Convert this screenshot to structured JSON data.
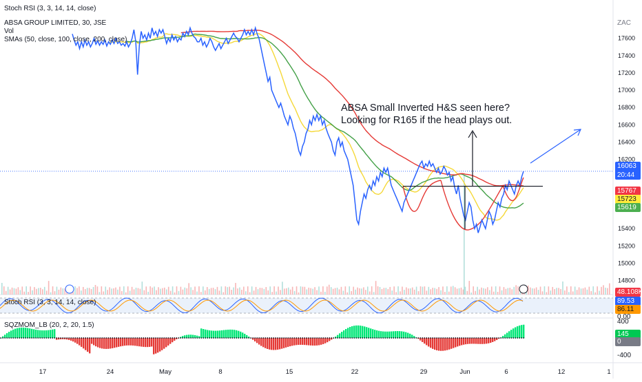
{
  "chart_data": {
    "type": "line",
    "top_indicator_label": "Stoch RSI (3, 3, 14, 14, close)",
    "legend": {
      "symbol": "ABSA GROUP LIMITED, 30, JSE",
      "vol": "Vol",
      "smas": "SMAs (50, close, 100, close, 200, close)"
    },
    "currency": "ZAC",
    "annotation_lines": [
      "ABSA Small Inverted H&S seen here?",
      "Looking for R165 if the head plays out."
    ],
    "price_axis": {
      "range": [
        14860,
        17780
      ],
      "ticks": [
        "17600",
        "17400",
        "17200",
        "17000",
        "16800",
        "16600",
        "16400",
        "16200",
        "15400",
        "15200",
        "15000",
        "14800"
      ]
    },
    "price_tags": [
      {
        "label": "16063",
        "sub": "20:44",
        "value": 16063,
        "color": "#2962ff"
      },
      {
        "label": "15767",
        "value": 15767,
        "color": "#f23645"
      },
      {
        "label": "15723",
        "value": 15723,
        "color": "#ffeb3b",
        "text_color": "#131722"
      },
      {
        "label": "15619",
        "value": 15619,
        "color": "#4caf50"
      }
    ],
    "volume_tag": {
      "label": "48.108K",
      "color": "#f23645"
    },
    "x_ticks": [
      "17",
      "24",
      "May",
      "8",
      "15",
      "22",
      "29",
      "Jun",
      "6",
      "12",
      "1"
    ],
    "price_series": {
      "name": "ABSA GROUP LIMITED",
      "points": [
        [
          0,
          17650
        ],
        [
          1,
          17580
        ],
        [
          2,
          17520
        ],
        [
          3,
          17560
        ],
        [
          4,
          17480
        ],
        [
          5,
          17560
        ],
        [
          6,
          17500
        ],
        [
          7,
          17580
        ],
        [
          8,
          17520
        ],
        [
          9,
          17560
        ],
        [
          10,
          17500
        ],
        [
          11,
          17540
        ],
        [
          12,
          17600
        ],
        [
          13,
          17530
        ],
        [
          14,
          17570
        ],
        [
          15,
          17520
        ],
        [
          16,
          17560
        ],
        [
          17,
          17530
        ],
        [
          18,
          17580
        ],
        [
          19,
          17510
        ],
        [
          20,
          17560
        ],
        [
          21,
          17530
        ],
        [
          22,
          17580
        ],
        [
          23,
          17540
        ],
        [
          24,
          17600
        ],
        [
          25,
          17540
        ],
        [
          26,
          17560
        ],
        [
          27,
          17520
        ],
        [
          28,
          17540
        ],
        [
          29,
          17510
        ],
        [
          30,
          17560
        ],
        [
          31,
          17500
        ],
        [
          32,
          17540
        ],
        [
          33,
          17600
        ],
        [
          34,
          17700
        ],
        [
          35,
          17560
        ],
        [
          36,
          17180
        ],
        [
          37,
          17520
        ],
        [
          38,
          17680
        ],
        [
          39,
          17600
        ],
        [
          40,
          17640
        ],
        [
          41,
          17580
        ],
        [
          42,
          17660
        ],
        [
          43,
          17600
        ],
        [
          44,
          17720
        ],
        [
          45,
          17640
        ],
        [
          46,
          17680
        ],
        [
          47,
          17620
        ],
        [
          48,
          17700
        ],
        [
          49,
          17660
        ],
        [
          50,
          17700
        ],
        [
          51,
          17620
        ],
        [
          52,
          17540
        ],
        [
          53,
          17600
        ],
        [
          54,
          17560
        ],
        [
          55,
          17640
        ],
        [
          56,
          17580
        ],
        [
          57,
          17620
        ],
        [
          58,
          17560
        ],
        [
          59,
          17600
        ],
        [
          60,
          17580
        ],
        [
          61,
          17660
        ],
        [
          62,
          17620
        ],
        [
          63,
          17680
        ],
        [
          64,
          17640
        ],
        [
          65,
          17720
        ],
        [
          66,
          17660
        ],
        [
          67,
          17620
        ],
        [
          68,
          17600
        ],
        [
          69,
          17560
        ],
        [
          70,
          17560
        ],
        [
          71,
          17600
        ],
        [
          72,
          17520
        ],
        [
          73,
          17560
        ],
        [
          74,
          17500
        ],
        [
          75,
          17540
        ],
        [
          76,
          17600
        ],
        [
          77,
          17560
        ],
        [
          78,
          17500
        ],
        [
          79,
          17460
        ],
        [
          80,
          17500
        ],
        [
          81,
          17540
        ],
        [
          82,
          17480
        ],
        [
          83,
          17520
        ],
        [
          84,
          17560
        ],
        [
          85,
          17600
        ],
        [
          86,
          17540
        ],
        [
          87,
          17580
        ],
        [
          88,
          17620
        ],
        [
          89,
          17660
        ],
        [
          90,
          17620
        ],
        [
          91,
          17600
        ],
        [
          92,
          17560
        ],
        [
          93,
          17600
        ],
        [
          94,
          17640
        ],
        [
          95,
          17700
        ],
        [
          96,
          17640
        ],
        [
          97,
          17680
        ],
        [
          98,
          17640
        ],
        [
          99,
          17700
        ],
        [
          100,
          17640
        ],
        [
          101,
          17720
        ],
        [
          102,
          17650
        ],
        [
          103,
          17600
        ],
        [
          104,
          17500
        ],
        [
          105,
          17400
        ],
        [
          106,
          17300
        ],
        [
          107,
          17200
        ],
        [
          108,
          17100
        ],
        [
          109,
          17150
        ],
        [
          110,
          17000
        ],
        [
          111,
          16950
        ],
        [
          112,
          16900
        ],
        [
          113,
          16850
        ],
        [
          114,
          16800
        ],
        [
          115,
          16850
        ],
        [
          116,
          16780
        ],
        [
          117,
          16700
        ],
        [
          118,
          16650
        ],
        [
          119,
          16600
        ],
        [
          120,
          16700
        ],
        [
          121,
          16650
        ],
        [
          122,
          16560
        ],
        [
          123,
          16500
        ],
        [
          124,
          16400
        ],
        [
          125,
          16300
        ],
        [
          126,
          16250
        ],
        [
          127,
          16350
        ],
        [
          128,
          16400
        ],
        [
          129,
          16500
        ],
        [
          130,
          16550
        ],
        [
          131,
          16650
        ],
        [
          132,
          16600
        ],
        [
          133,
          16700
        ],
        [
          134,
          16650
        ],
        [
          135,
          16720
        ],
        [
          136,
          16650
        ],
        [
          137,
          16700
        ],
        [
          138,
          16600
        ],
        [
          139,
          16650
        ],
        [
          140,
          16560
        ],
        [
          141,
          16500
        ],
        [
          142,
          16450
        ],
        [
          143,
          16400
        ],
        [
          144,
          16300
        ],
        [
          145,
          16250
        ],
        [
          146,
          16400
        ],
        [
          147,
          16450
        ],
        [
          148,
          16350
        ],
        [
          149,
          16400
        ],
        [
          150,
          16300
        ],
        [
          151,
          16250
        ],
        [
          152,
          16200
        ],
        [
          153,
          16100
        ],
        [
          154,
          16000
        ],
        [
          155,
          15900
        ],
        [
          156,
          15700
        ],
        [
          157,
          15500
        ],
        [
          158,
          15450
        ],
        [
          159,
          15600
        ],
        [
          160,
          15700
        ],
        [
          161,
          15800
        ],
        [
          162,
          15750
        ],
        [
          163,
          15850
        ],
        [
          164,
          15900
        ],
        [
          165,
          15850
        ],
        [
          166,
          15950
        ],
        [
          167,
          15900
        ],
        [
          168,
          16000
        ],
        [
          169,
          15950
        ],
        [
          170,
          16050
        ],
        [
          171,
          16000
        ],
        [
          172,
          16100
        ],
        [
          173,
          16050
        ],
        [
          174,
          16100
        ],
        [
          175,
          16000
        ],
        [
          176,
          15900
        ],
        [
          177,
          15850
        ],
        [
          178,
          15800
        ],
        [
          179,
          15750
        ],
        [
          180,
          15700
        ],
        [
          181,
          15650
        ],
        [
          182,
          15600
        ],
        [
          183,
          15700
        ],
        [
          184,
          15750
        ],
        [
          185,
          15800
        ],
        [
          186,
          15850
        ],
        [
          187,
          15900
        ],
        [
          188,
          15950
        ],
        [
          189,
          16000
        ],
        [
          190,
          16050
        ],
        [
          191,
          16100
        ],
        [
          192,
          16150
        ],
        [
          193,
          16180
        ],
        [
          194,
          16100
        ],
        [
          195,
          16150
        ],
        [
          196,
          16120
        ],
        [
          197,
          16180
        ],
        [
          198,
          16120
        ],
        [
          199,
          16150
        ],
        [
          200,
          16100
        ],
        [
          201,
          16050
        ],
        [
          202,
          16100
        ],
        [
          203,
          16030
        ],
        [
          204,
          16060
        ],
        [
          205,
          16120
        ],
        [
          206,
          16080
        ],
        [
          207,
          16020
        ],
        [
          208,
          16050
        ],
        [
          209,
          15950
        ],
        [
          210,
          16000
        ],
        [
          211,
          15880
        ],
        [
          212,
          15800
        ],
        [
          213,
          15900
        ],
        [
          214,
          15750
        ],
        [
          215,
          15650
        ],
        [
          216,
          15550
        ],
        [
          217,
          15500
        ],
        [
          218,
          15600
        ],
        [
          219,
          15700
        ],
        [
          220,
          15650
        ],
        [
          221,
          15500
        ],
        [
          222,
          15400
        ],
        [
          223,
          15450
        ],
        [
          224,
          15350
        ],
        [
          225,
          15420
        ],
        [
          226,
          15500
        ],
        [
          227,
          15450
        ],
        [
          228,
          15400
        ],
        [
          229,
          15500
        ],
        [
          230,
          15600
        ],
        [
          231,
          15550
        ],
        [
          232,
          15450
        ],
        [
          233,
          15500
        ],
        [
          234,
          15600
        ],
        [
          235,
          15700
        ],
        [
          236,
          15650
        ],
        [
          237,
          15750
        ],
        [
          238,
          15800
        ],
        [
          239,
          15900
        ],
        [
          240,
          15850
        ],
        [
          241,
          15950
        ],
        [
          242,
          15900
        ],
        [
          243,
          15850
        ],
        [
          244,
          15800
        ],
        [
          245,
          15900
        ],
        [
          246,
          15950
        ],
        [
          247,
          15900
        ],
        [
          248,
          16000
        ],
        [
          249,
          16063
        ]
      ]
    },
    "sma_series": [
      {
        "name": "SMA 50",
        "color": "#f5d838"
      },
      {
        "name": "SMA 100",
        "color": "#43a047"
      },
      {
        "name": "SMA 200",
        "color": "#e53935"
      }
    ],
    "stoch_panel": {
      "label": "Stoch RSI (3, 3, 14, 14, close)",
      "tags": [
        {
          "label": "89.53",
          "color": "#2962ff"
        },
        {
          "label": "86.11",
          "color": "#ff9800",
          "text_color": "#131722"
        }
      ],
      "axis_label": "0.00"
    },
    "sqzmom_panel": {
      "label": "SQZMOM_LB (20, 2, 20, 1.5)",
      "axis_ticks": [
        "400",
        "-400"
      ],
      "tags": [
        {
          "label": "145",
          "color": "#00c853"
        },
        {
          "label": "0",
          "color": "#787b86"
        }
      ]
    }
  }
}
